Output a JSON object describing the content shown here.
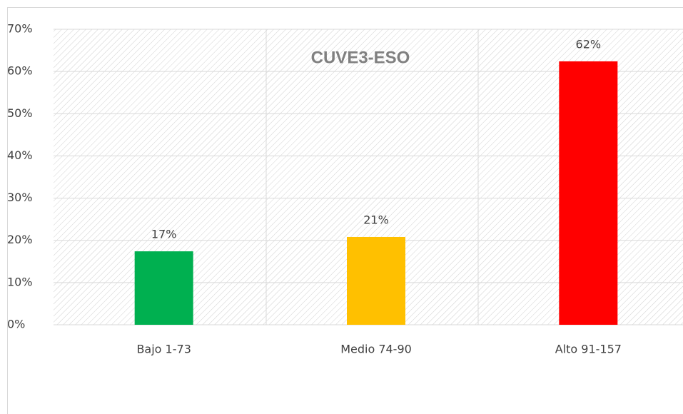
{
  "chart_data": {
    "type": "bar",
    "title": "CUVE3-ESO",
    "categories": [
      "Bajo 1-73",
      "Medio 74-90",
      "Alto 91-157"
    ],
    "values": [
      17.4,
      20.8,
      62.4
    ],
    "value_labels": [
      "17%",
      "21%",
      "62%"
    ],
    "colors": [
      "#00b050",
      "#ffc000",
      "#ff0000"
    ],
    "ylim": [
      0,
      70
    ],
    "yticks": [
      {
        "value": 0,
        "label": "0%"
      },
      {
        "value": 10,
        "label": "10%"
      },
      {
        "value": 20,
        "label": "20%"
      },
      {
        "value": 30,
        "label": "30%"
      },
      {
        "value": 40,
        "label": "40%"
      },
      {
        "value": 50,
        "label": "50%"
      },
      {
        "value": 60,
        "label": "60%"
      },
      {
        "value": 70,
        "label": "70%"
      }
    ],
    "grid": true
  }
}
